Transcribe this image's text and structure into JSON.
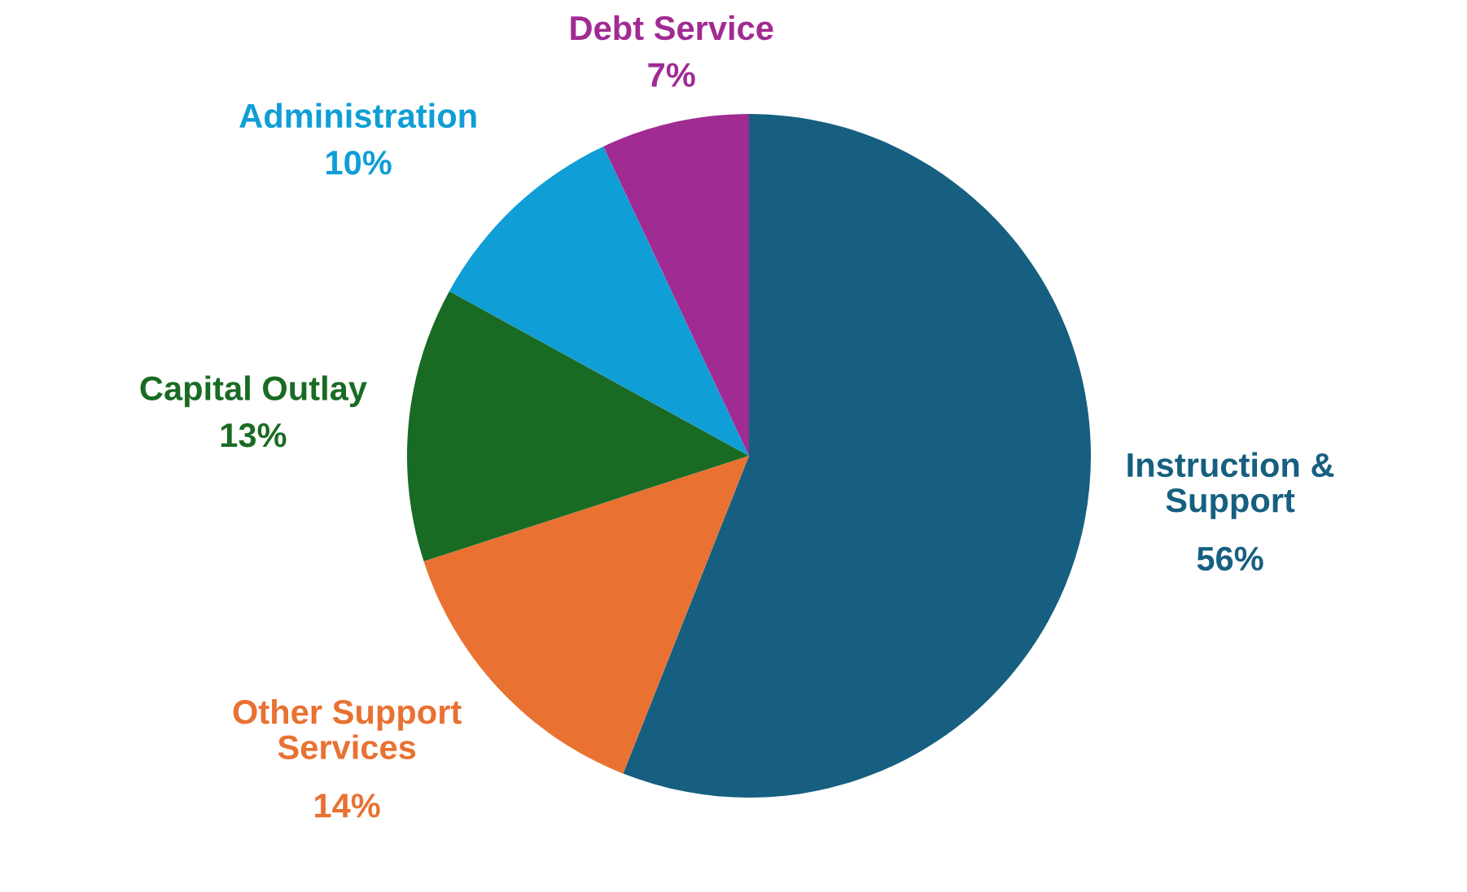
{
  "chart_data": {
    "type": "pie",
    "categories": [
      "Instruction &\nSupport",
      "Other Support\nServices",
      "Capital Outlay",
      "Administration",
      "Debt Service"
    ],
    "values": [
      56,
      14,
      13,
      10,
      7
    ],
    "value_labels": [
      "56%",
      "14%",
      "13%",
      "10%",
      "7%"
    ],
    "colors": [
      "#165f80",
      "#e97132",
      "#196b24",
      "#0f9ed5",
      "#a02b93"
    ]
  }
}
